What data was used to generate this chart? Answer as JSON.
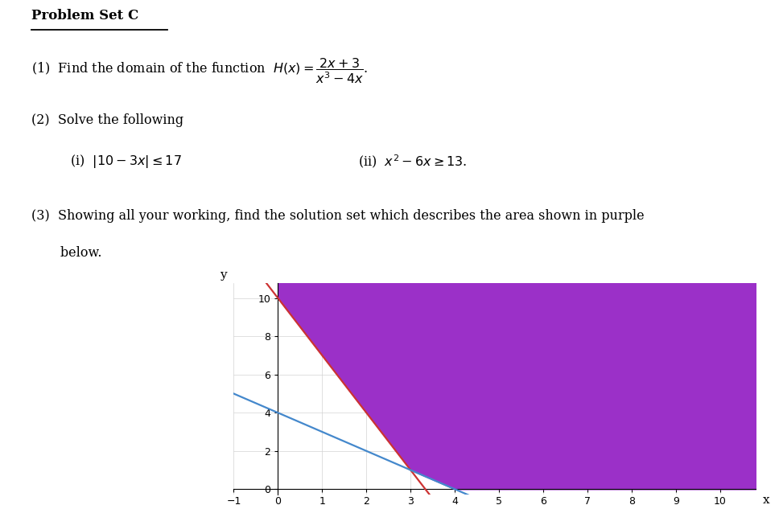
{
  "title_text": "Problem Set C",
  "q1_line1": "(1)  Find the domain of the function  ",
  "q1_formula": "$H(x)=\\dfrac{2x+3}{x^3-4x}$.",
  "q2_line1": "(2)  Solve the following",
  "q2i": "(i)  $|10-3x|\\leq 17$",
  "q2ii": "(ii)  $x^2-6x\\geq 13$.",
  "q3_line1": "(3)  Showing all your working, find the solution set which describes the area shown in purple",
  "q3_line2": "       below.",
  "xlabel": "x",
  "ylabel": "y",
  "xlim": [
    -1,
    10.8
  ],
  "ylim": [
    -0.3,
    10.8
  ],
  "xticks": [
    -1,
    0,
    1,
    2,
    3,
    4,
    5,
    6,
    7,
    8,
    9,
    10
  ],
  "yticks": [
    0,
    2,
    4,
    6,
    8,
    10
  ],
  "purple_color": "#9B30C8",
  "red_line_color": "#CC3333",
  "blue_line_color": "#4488CC",
  "fig_width": 9.68,
  "fig_height": 6.28,
  "background_color": "#ffffff"
}
